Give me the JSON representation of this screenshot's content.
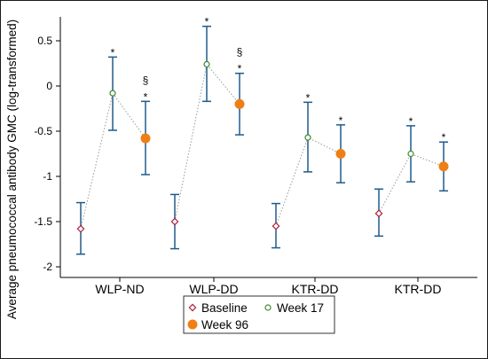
{
  "chart_data": {
    "type": "scatter",
    "ylabel": "Average pneumococcal antibody GMC (log-transformed)",
    "xlabel": "",
    "ylim": [
      -2.1,
      0.75
    ],
    "yticks": [
      0.5,
      0,
      -0.5,
      -1,
      -1.5,
      -2
    ],
    "ytick_labels": [
      "0.5",
      "0",
      "-0.5",
      "-1",
      "-1.5",
      "-2"
    ],
    "categories": [
      "WLP-ND",
      "WLP-DD",
      "KTR-DD",
      "KTR-DD"
    ],
    "series": [
      {
        "name": "Baseline",
        "marker": "diamond-hollow",
        "color": "#b0233a",
        "values": [
          -1.58,
          -1.5,
          -1.55,
          -1.41
        ],
        "ci_low": [
          -1.86,
          -1.8,
          -1.79,
          -1.66
        ],
        "ci_high": [
          -1.29,
          -1.2,
          -1.3,
          -1.14
        ],
        "annotations": [
          "",
          "",
          "",
          ""
        ]
      },
      {
        "name": "Week 17",
        "marker": "circle-hollow",
        "color": "#3f8a2c",
        "values": [
          -0.08,
          0.24,
          -0.57,
          -0.75
        ],
        "ci_low": [
          -0.49,
          -0.17,
          -0.95,
          -1.06
        ],
        "ci_high": [
          0.32,
          0.66,
          -0.18,
          -0.44
        ],
        "annotations": [
          "*",
          "*",
          "*",
          "*"
        ]
      },
      {
        "name": "Week 96",
        "marker": "circle-filled",
        "color": "#f07f13",
        "values": [
          -0.58,
          -0.2,
          -0.75,
          -0.89
        ],
        "ci_low": [
          -0.98,
          -0.54,
          -1.07,
          -1.16
        ],
        "ci_high": [
          -0.17,
          0.14,
          -0.43,
          -0.62
        ],
        "annotations": [
          "§ *",
          "§ *",
          "*",
          "*"
        ]
      }
    ],
    "grid": false,
    "legend": "bottom",
    "colors": {
      "error_bar": "#1f5b8c",
      "connector": "#9a9a9a"
    }
  }
}
